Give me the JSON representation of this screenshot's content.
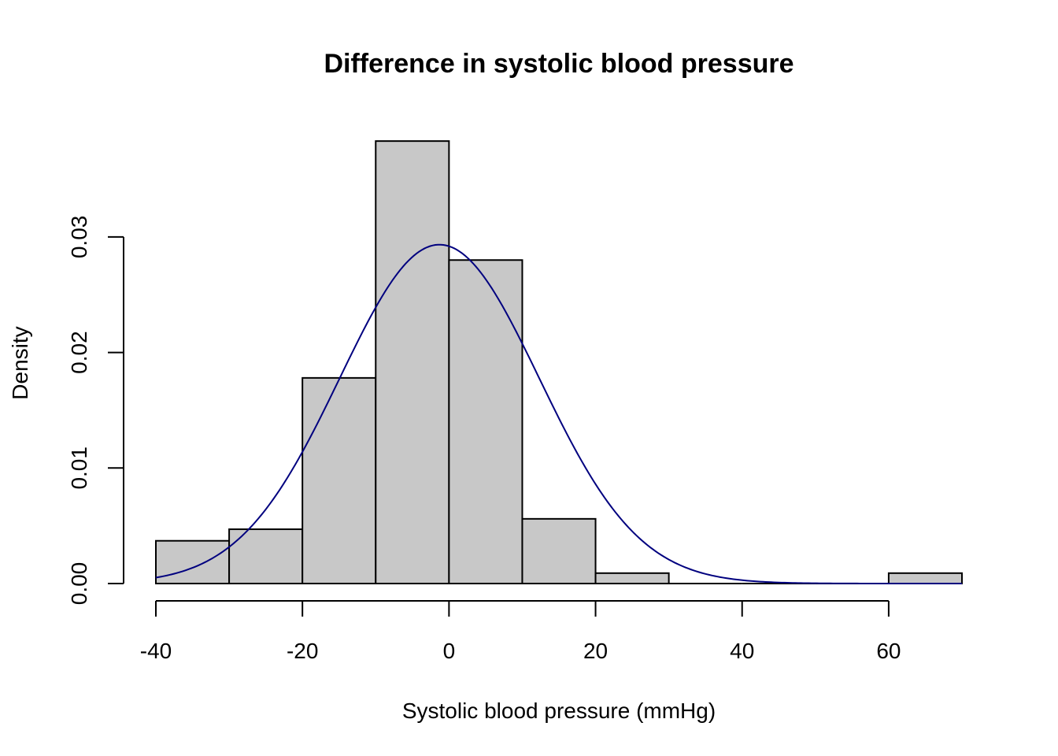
{
  "chart_data": {
    "type": "bar",
    "title": "Difference in systolic blood pressure",
    "xlabel": "Systolic blood pressure (mmHg)",
    "ylabel": "Density",
    "xlim": [
      -40,
      70
    ],
    "ylim": [
      0,
      0.0383
    ],
    "x_ticks": [
      -40,
      -20,
      0,
      20,
      40,
      60
    ],
    "x_tick_labels": [
      "-40",
      "-20",
      "0",
      "20",
      "40",
      "60"
    ],
    "y_ticks": [
      0,
      0.01,
      0.02,
      0.03
    ],
    "y_tick_labels": [
      "0.00",
      "0.01",
      "0.02",
      "0.03"
    ],
    "bins": [
      {
        "x0": -40,
        "x1": -30,
        "value": 0.0037
      },
      {
        "x0": -30,
        "x1": -20,
        "value": 0.0047
      },
      {
        "x0": -20,
        "x1": -10,
        "value": 0.0178
      },
      {
        "x0": -10,
        "x1": 0,
        "value": 0.0383
      },
      {
        "x0": 0,
        "x1": 10,
        "value": 0.028
      },
      {
        "x0": 10,
        "x1": 20,
        "value": 0.0056
      },
      {
        "x0": 20,
        "x1": 30,
        "value": 0.0009
      },
      {
        "x0": 30,
        "x1": 40,
        "value": 0
      },
      {
        "x0": 40,
        "x1": 50,
        "value": 0
      },
      {
        "x0": 50,
        "x1": 60,
        "value": 0
      },
      {
        "x0": 60,
        "x1": 70,
        "value": 0.0009
      }
    ],
    "normal_curve": {
      "mean": -1.3,
      "sd": 13.6,
      "x_range": [
        -40,
        70
      ]
    },
    "grid": false,
    "colors": {
      "bar_fill": "#c8c8c8",
      "bar_stroke": "#000000",
      "curve": "#00007f"
    }
  }
}
